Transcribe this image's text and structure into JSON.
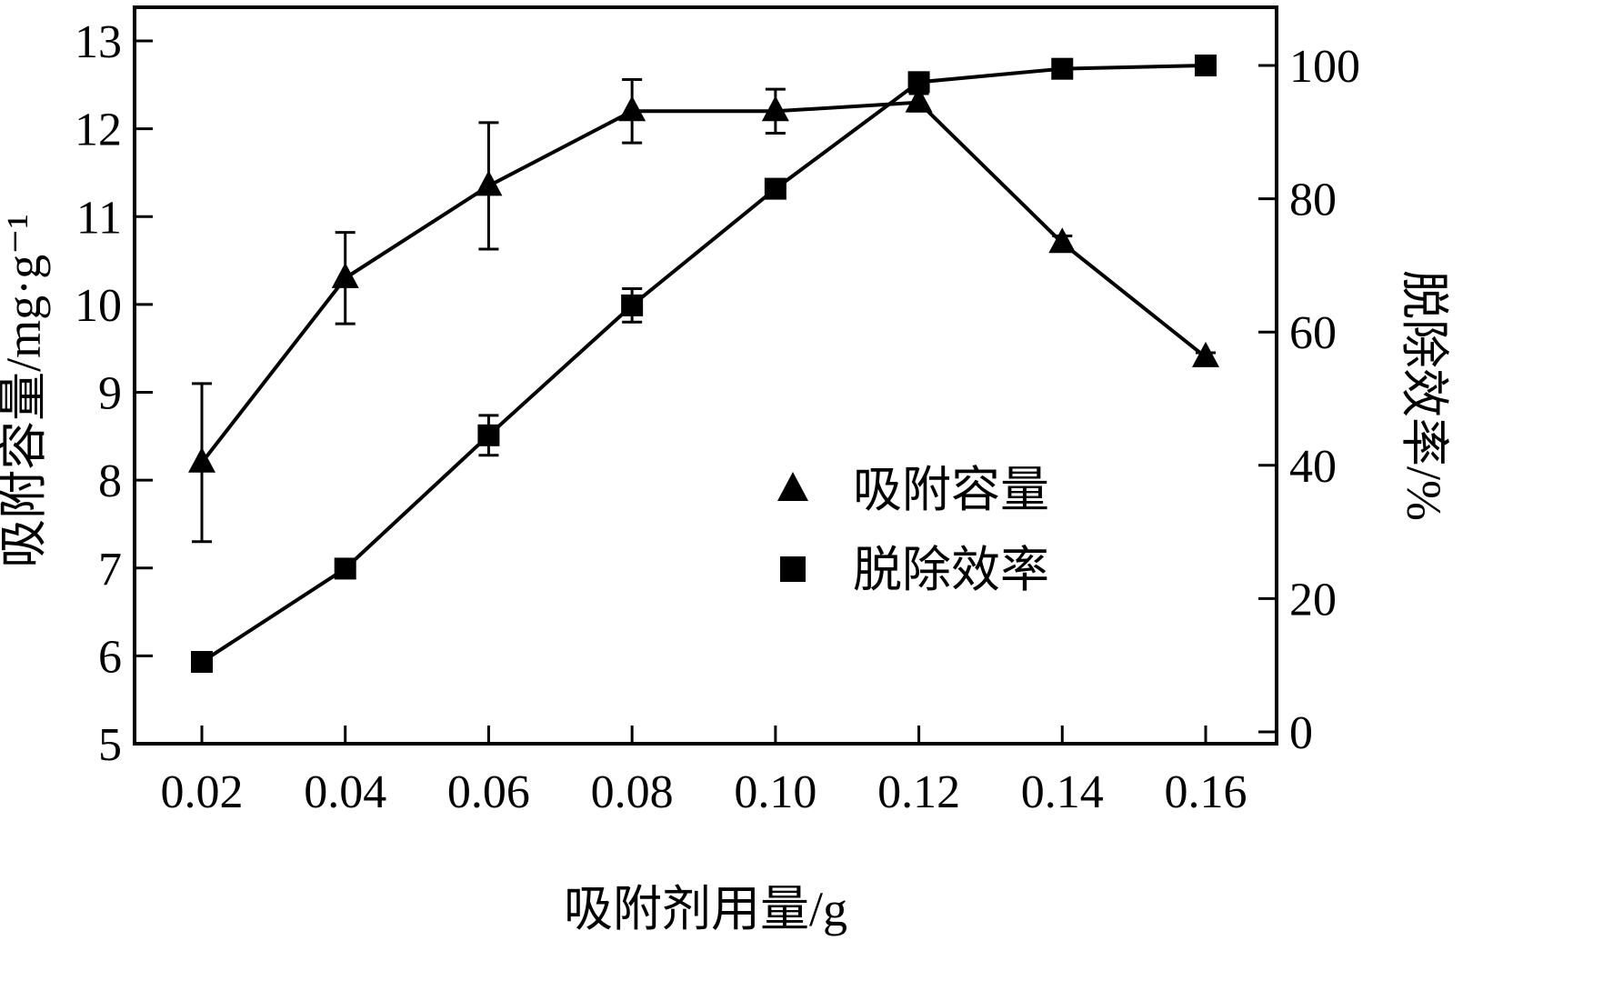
{
  "figure": {
    "background": "#ffffff",
    "ink": "#000000"
  },
  "chart_data": {
    "type": "line",
    "title": "",
    "x": [
      0.02,
      0.04,
      0.06,
      0.08,
      0.1,
      0.12,
      0.14,
      0.16
    ],
    "x_tick_labels": [
      "0.02",
      "0.04",
      "0.06",
      "0.08",
      "0.10",
      "0.12",
      "0.14",
      "0.16"
    ],
    "xlabel": "吸附剂用量/g",
    "left_axis": {
      "label": "吸附容量/mg·g⁻¹",
      "min": 5,
      "max": 13,
      "ticks": [
        5,
        6,
        7,
        8,
        9,
        10,
        11,
        12,
        13
      ]
    },
    "right_axis": {
      "label": "脱除效率/%",
      "min": 0,
      "max": 100,
      "ticks": [
        0,
        20,
        40,
        60,
        80,
        100
      ]
    },
    "series": [
      {
        "name": "吸附容量",
        "axis": "left",
        "marker": "triangle",
        "values": [
          8.2,
          10.3,
          11.35,
          12.2,
          12.2,
          12.3,
          10.7,
          9.4
        ],
        "errors": [
          0.9,
          0.52,
          0.72,
          0.36,
          0.25,
          0.1,
          0.08,
          0.05
        ]
      },
      {
        "name": "脱除效率",
        "axis": "right",
        "marker": "square",
        "values": [
          10.5,
          24.5,
          44.5,
          64,
          81.5,
          97.5,
          99.5,
          100
        ],
        "errors": [
          1,
          0.8,
          3,
          2.5,
          1,
          0.8,
          0.5,
          0.5
        ]
      }
    ],
    "legend": [
      {
        "marker": "triangle",
        "label": "吸附容量"
      },
      {
        "marker": "square",
        "label": "脱除效率"
      }
    ],
    "grid": false,
    "legend_position": "inside-right-middle"
  }
}
